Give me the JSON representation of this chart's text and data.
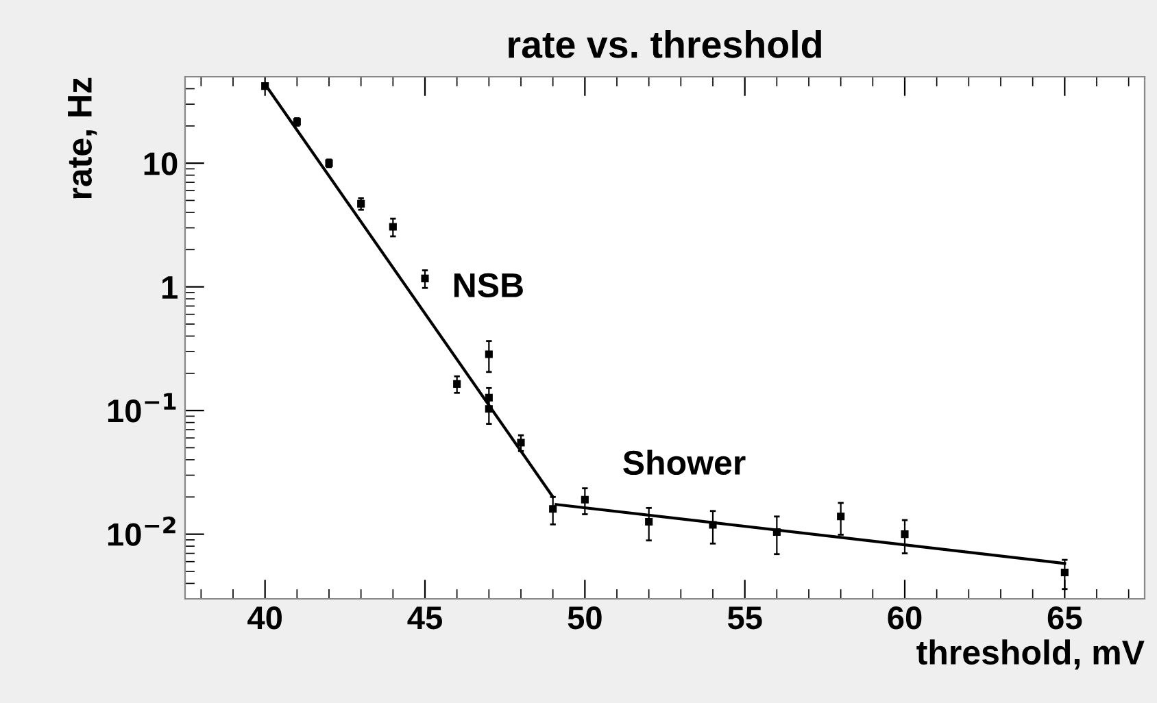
{
  "chart_data": {
    "type": "scatter",
    "title": "rate vs. threshold",
    "xlabel": "threshold, mV",
    "ylabel": "rate, Hz",
    "log": "y",
    "xlim": [
      37.5,
      67.5
    ],
    "xticks": [
      40,
      45,
      50,
      55,
      60,
      65
    ],
    "ylim": [
      0.003,
      50
    ],
    "yticks": [
      {
        "value": 0.01,
        "label": "10$^{−2}$"
      },
      {
        "value": 0.1,
        "label": "10$^{−1}$"
      },
      1,
      10
    ],
    "grid": false,
    "legend": false,
    "series": [
      {
        "marker": "square",
        "color": "#000000",
        "x": [
          40,
          41,
          42,
          43,
          44,
          45,
          46,
          47,
          47,
          47,
          48,
          49,
          50,
          52,
          54,
          56,
          58,
          60,
          65
        ],
        "values": [
          42,
          21.6,
          10,
          4.7,
          3.06,
          1.17,
          0.164,
          0.285,
          0.127,
          0.103,
          0.055,
          0.016,
          0.019,
          0.0126,
          0.0119,
          0.0104,
          0.0139,
          0.01,
          0.0049
        ],
        "errors": [
          2,
          1.5,
          0.7,
          0.5,
          0.5,
          0.19,
          0.025,
          0.08,
          0.025,
          0.025,
          0.008,
          0.004,
          0.0045,
          0.0037,
          0.0035,
          0.0035,
          0.004,
          0.003,
          0.0013
        ]
      },
      {
        "type": "line",
        "marker": "none",
        "color": "#000000",
        "line_style": "solid",
        "x": [
          40,
          49
        ],
        "values": [
          43.5,
          0.02
        ]
      },
      {
        "type": "line",
        "marker": "none",
        "color": "#000000",
        "line_style": "solid",
        "x": [
          49.1,
          65
        ],
        "values": [
          0.0174,
          0.0058
        ]
      }
    ],
    "annotations": [
      "NSB",
      "Shower"
    ]
  }
}
